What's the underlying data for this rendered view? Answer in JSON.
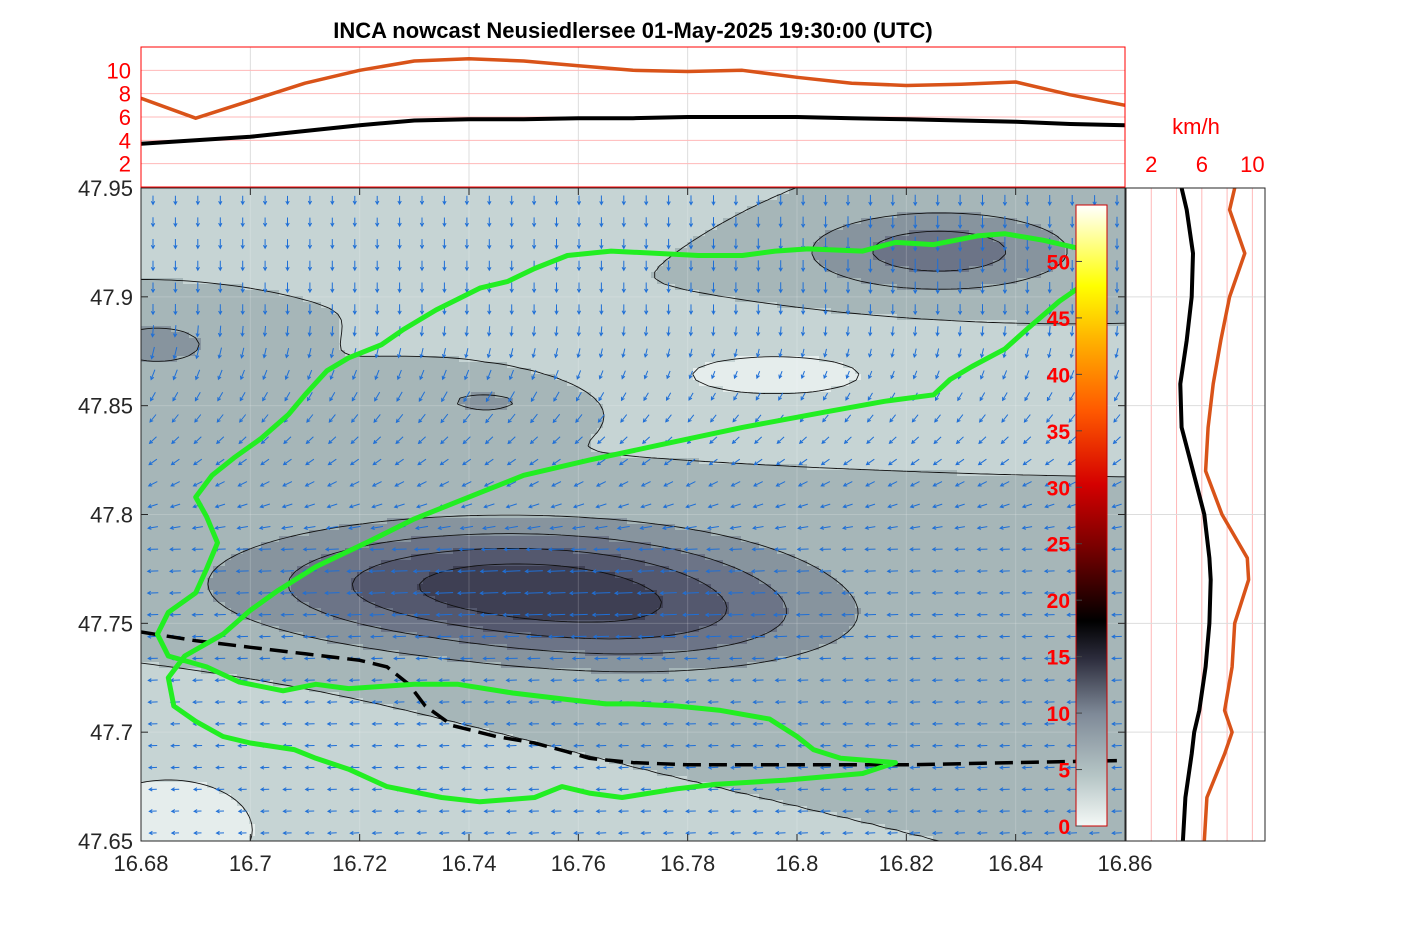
{
  "title": "INCA nowcast Neusiedlersee 01-May-2025 19:30:00 (UTC)",
  "colors": {
    "series_orange": "#d95319",
    "series_black": "#000000",
    "outline_green": "#22ee22",
    "arrow_blue": "#1f6fd6",
    "tick_red": "#ff0000"
  },
  "chart_data": [
    {
      "type": "line",
      "name": "top-profile",
      "x": [
        16.68,
        16.69,
        16.7,
        16.71,
        16.72,
        16.73,
        16.74,
        16.75,
        16.76,
        16.77,
        16.78,
        16.79,
        16.8,
        16.81,
        16.82,
        16.83,
        16.84,
        16.85,
        16.86
      ],
      "series": [
        {
          "values": [
            7.6,
            5.9,
            7.4,
            8.9,
            10.0,
            10.8,
            11.0,
            10.8,
            10.4,
            10.0,
            9.9,
            10.0,
            9.4,
            8.9,
            8.7,
            8.8,
            9.0,
            7.9,
            7.0
          ]
        },
        {
          "values": [
            3.7,
            4.0,
            4.3,
            4.8,
            5.3,
            5.7,
            5.8,
            5.8,
            5.9,
            5.9,
            6.0,
            6.0,
            6.0,
            5.9,
            5.8,
            5.7,
            5.6,
            5.4,
            5.3
          ]
        }
      ],
      "xlim": [
        16.68,
        16.86
      ],
      "ylim": [
        0,
        12
      ],
      "yticks": [
        "2",
        "4",
        "6",
        "8",
        "10"
      ]
    },
    {
      "type": "line",
      "name": "side-profile",
      "xlabel": "km/h",
      "xticks": [
        "2",
        "6",
        "10"
      ],
      "xlim": [
        0,
        11
      ],
      "ylim": [
        47.65,
        47.95
      ],
      "y": [
        47.65,
        47.67,
        47.69,
        47.7,
        47.71,
        47.73,
        47.75,
        47.77,
        47.78,
        47.8,
        47.82,
        47.84,
        47.86,
        47.88,
        47.9,
        47.92,
        47.94,
        47.95
      ],
      "series": [
        {
          "values": [
            6.2,
            6.4,
            7.8,
            8.4,
            7.8,
            8.4,
            8.6,
            9.7,
            9.6,
            7.6,
            6.3,
            6.5,
            6.9,
            7.5,
            8.2,
            9.4,
            8.2,
            8.6
          ]
        },
        {
          "values": [
            4.5,
            4.7,
            5.2,
            5.4,
            5.8,
            6.3,
            6.6,
            6.7,
            6.6,
            6.2,
            5.3,
            4.4,
            4.3,
            4.8,
            5.2,
            5.3,
            4.8,
            4.4
          ]
        }
      ]
    },
    {
      "type": "heatmap",
      "name": "wind-speed-map",
      "xlim": [
        16.68,
        16.86
      ],
      "ylim": [
        47.65,
        47.95
      ],
      "xticks": [
        "16.68",
        "16.7",
        "16.72",
        "16.74",
        "16.76",
        "16.78",
        "16.8",
        "16.82",
        "16.84",
        "16.86"
      ],
      "yticks": [
        "47.65",
        "47.7",
        "47.75",
        "47.8",
        "47.85",
        "47.9",
        "47.95"
      ],
      "colorbar": {
        "min": 0,
        "max": 55,
        "ticks": [
          "0",
          "5",
          "10",
          "15",
          "20",
          "25",
          "30",
          "35",
          "40",
          "45",
          "50"
        ]
      },
      "levels": [
        2,
        4,
        6,
        8,
        10,
        12
      ],
      "centers": [
        {
          "x": 16.747,
          "y": 47.768,
          "a": 0.026,
          "b": 0.045,
          "rot": 0.05,
          "amp": 8.8
        },
        {
          "x": 16.776,
          "y": 47.748,
          "a": 0.021,
          "b": 0.034,
          "rot": 0.0,
          "amp": 3.6
        },
        {
          "x": 16.826,
          "y": 47.921,
          "a": 0.018,
          "b": 0.024,
          "rot": 0.0,
          "amp": 5.2
        },
        {
          "x": 16.683,
          "y": 47.878,
          "a": 0.014,
          "b": 0.014,
          "rot": 0.0,
          "amp": 2.7
        },
        {
          "x": 16.744,
          "y": 47.852,
          "a": 0.012,
          "b": 0.018,
          "rot": 0.0,
          "amp": 2.4
        }
      ],
      "base": 4.0,
      "dips": [
        {
          "x": 16.796,
          "y": 47.864,
          "a": 0.02,
          "b": 0.036,
          "amp": 2.4
        },
        {
          "x": 16.685,
          "y": 47.655,
          "a": 0.045,
          "b": 0.03,
          "amp": 2.6
        },
        {
          "x": 16.72,
          "y": 47.945,
          "a": 0.02,
          "b": 0.05,
          "amp": 1.6
        }
      ],
      "lake_outline": [
        [
          16.812,
          47.921
        ],
        [
          16.818,
          47.925
        ],
        [
          16.825,
          47.924
        ],
        [
          16.833,
          47.928
        ],
        [
          16.838,
          47.929
        ],
        [
          16.845,
          47.926
        ],
        [
          16.852,
          47.922
        ],
        [
          16.852,
          47.905
        ],
        [
          16.848,
          47.898
        ],
        [
          16.842,
          47.885
        ],
        [
          16.838,
          47.876
        ],
        [
          16.832,
          47.868
        ],
        [
          16.828,
          47.862
        ],
        [
          16.825,
          47.855
        ],
        [
          16.816,
          47.852
        ],
        [
          16.805,
          47.847
        ],
        [
          16.79,
          47.84
        ],
        [
          16.775,
          47.832
        ],
        [
          16.762,
          47.825
        ],
        [
          16.75,
          47.818
        ],
        [
          16.742,
          47.81
        ],
        [
          16.73,
          47.798
        ],
        [
          16.722,
          47.788
        ],
        [
          16.712,
          47.776
        ],
        [
          16.705,
          47.765
        ],
        [
          16.7,
          47.756
        ],
        [
          16.695,
          47.745
        ],
        [
          16.688,
          47.735
        ],
        [
          16.685,
          47.725
        ],
        [
          16.686,
          47.712
        ],
        [
          16.69,
          47.705
        ],
        [
          16.695,
          47.698
        ],
        [
          16.7,
          47.695
        ],
        [
          16.708,
          47.692
        ],
        [
          16.712,
          47.688
        ],
        [
          16.718,
          47.683
        ],
        [
          16.725,
          47.675
        ],
        [
          16.735,
          47.67
        ],
        [
          16.742,
          47.668
        ],
        [
          16.752,
          47.67
        ],
        [
          16.757,
          47.675
        ],
        [
          16.762,
          47.672
        ],
        [
          16.768,
          47.67
        ],
        [
          16.778,
          47.674
        ],
        [
          16.785,
          47.676
        ],
        [
          16.798,
          47.678
        ],
        [
          16.812,
          47.681
        ],
        [
          16.818,
          47.686
        ],
        [
          16.808,
          47.688
        ],
        [
          16.803,
          47.692
        ],
        [
          16.8,
          47.698
        ],
        [
          16.795,
          47.706
        ],
        [
          16.786,
          47.71
        ],
        [
          16.778,
          47.712
        ],
        [
          16.77,
          47.713
        ],
        [
          16.765,
          47.713
        ],
        [
          16.758,
          47.715
        ],
        [
          16.748,
          47.718
        ],
        [
          16.738,
          47.722
        ],
        [
          16.73,
          47.722
        ],
        [
          16.718,
          47.72
        ],
        [
          16.712,
          47.722
        ],
        [
          16.706,
          47.719
        ],
        [
          16.698,
          47.723
        ],
        [
          16.692,
          47.73
        ],
        [
          16.685,
          47.735
        ],
        [
          16.683,
          47.745
        ],
        [
          16.685,
          47.755
        ],
        [
          16.69,
          47.764
        ],
        [
          16.692,
          47.775
        ],
        [
          16.694,
          47.787
        ],
        [
          16.692,
          47.799
        ],
        [
          16.69,
          47.808
        ],
        [
          16.693,
          47.818
        ],
        [
          16.697,
          47.826
        ],
        [
          16.702,
          47.835
        ],
        [
          16.707,
          47.846
        ],
        [
          16.71,
          47.855
        ],
        [
          16.714,
          47.866
        ],
        [
          16.718,
          47.872
        ],
        [
          16.724,
          47.878
        ],
        [
          16.728,
          47.885
        ],
        [
          16.734,
          47.894
        ],
        [
          16.738,
          47.899
        ],
        [
          16.742,
          47.904
        ],
        [
          16.747,
          47.907
        ],
        [
          16.752,
          47.913
        ],
        [
          16.758,
          47.919
        ],
        [
          16.766,
          47.921
        ],
        [
          16.774,
          47.92
        ],
        [
          16.782,
          47.919
        ],
        [
          16.79,
          47.919
        ],
        [
          16.796,
          47.921
        ],
        [
          16.802,
          47.922
        ],
        [
          16.812,
          47.921
        ]
      ],
      "boundary_line": [
        [
          16.68,
          47.746
        ],
        [
          16.69,
          47.742
        ],
        [
          16.7,
          47.739
        ],
        [
          16.71,
          47.736
        ],
        [
          16.72,
          47.733
        ],
        [
          16.725,
          47.73
        ],
        [
          16.729,
          47.722
        ],
        [
          16.732,
          47.712
        ],
        [
          16.737,
          47.703
        ],
        [
          16.745,
          47.698
        ],
        [
          16.752,
          47.695
        ],
        [
          16.758,
          47.691
        ],
        [
          16.762,
          47.688
        ],
        [
          16.77,
          47.686
        ],
        [
          16.78,
          47.685
        ],
        [
          16.8,
          47.685
        ],
        [
          16.82,
          47.685
        ],
        [
          16.84,
          47.686
        ],
        [
          16.86,
          47.687
        ]
      ],
      "wind_arrows": {
        "columns": 44,
        "rows": 30,
        "rotation_deg": 0
      }
    }
  ]
}
